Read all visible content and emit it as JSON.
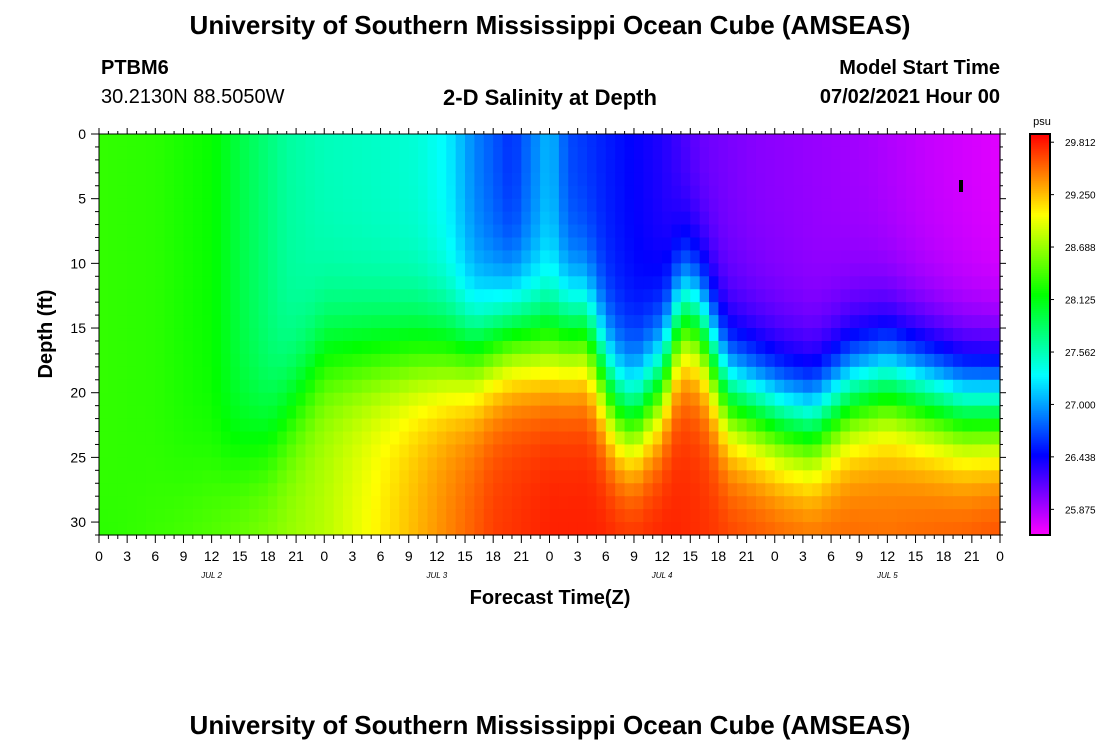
{
  "header": {
    "title_top": "University of Southern Mississippi Ocean Cube (AMSEAS)",
    "title_bottom": "University of Southern Mississippi Ocean Cube (AMSEAS)",
    "station_id": "PTBM6",
    "station_coords": "30.2130N  88.5050W",
    "plot_title": "2-D Salinity at Depth",
    "model_start_label": "Model Start Time",
    "model_start_value": "07/02/2021 Hour 00"
  },
  "chart_data": {
    "type": "heatmap",
    "title": "2-D Salinity at Depth",
    "xlabel": "Forecast Time(Z)",
    "ylabel": "Depth (ft)",
    "x_range_hours": [
      0,
      96
    ],
    "y_range_ft": [
      0,
      31
    ],
    "x_tick_labels": [
      "0",
      "3",
      "6",
      "9",
      "12",
      "15",
      "18",
      "21",
      "0",
      "3",
      "6",
      "9",
      "12",
      "15",
      "18",
      "21",
      "0",
      "3",
      "6",
      "9",
      "12",
      "15",
      "18",
      "21",
      "0",
      "3",
      "6",
      "9",
      "12",
      "15",
      "18",
      "21",
      "0"
    ],
    "y_tick_labels": [
      "0",
      "5",
      "10",
      "15",
      "20",
      "25",
      "30"
    ],
    "y_tick_values": [
      0,
      5,
      10,
      15,
      20,
      25,
      30
    ],
    "day_labels": [
      {
        "text": "JUL 2",
        "hour": 12
      },
      {
        "text": "JUL 3",
        "hour": 36
      },
      {
        "text": "JUL 4",
        "hour": 60
      },
      {
        "text": "JUL 5",
        "hour": 84
      }
    ],
    "colorbar": {
      "units": "psu",
      "min": 25.6,
      "max": 29.9,
      "tick_labels": [
        "29.812",
        "29.250",
        "28.688",
        "28.125",
        "27.562",
        "27.000",
        "26.438",
        "25.875"
      ],
      "tick_values": [
        29.812,
        29.25,
        28.688,
        28.125,
        27.562,
        27.0,
        26.438,
        25.875
      ]
    },
    "surface_profile": [
      {
        "t": 0,
        "v": 28.35
      },
      {
        "t": 6,
        "v": 28.32
      },
      {
        "t": 12,
        "v": 28.2
      },
      {
        "t": 15,
        "v": 27.95
      },
      {
        "t": 20,
        "v": 27.65
      },
      {
        "t": 24,
        "v": 27.55
      },
      {
        "t": 30,
        "v": 27.5
      },
      {
        "t": 34,
        "v": 27.45
      },
      {
        "t": 37,
        "v": 27.3
      },
      {
        "t": 40,
        "v": 26.9
      },
      {
        "t": 44,
        "v": 26.6
      },
      {
        "t": 48,
        "v": 27.1
      },
      {
        "t": 50,
        "v": 26.7
      },
      {
        "t": 54,
        "v": 26.55
      },
      {
        "t": 60,
        "v": 26.35
      },
      {
        "t": 64,
        "v": 26.1
      },
      {
        "t": 70,
        "v": 26.0
      },
      {
        "t": 76,
        "v": 25.95
      },
      {
        "t": 82,
        "v": 25.9
      },
      {
        "t": 88,
        "v": 25.8
      },
      {
        "t": 96,
        "v": 25.7
      }
    ],
    "halocline_depth": [
      {
        "t": 0,
        "d": 31
      },
      {
        "t": 18,
        "d": 24
      },
      {
        "t": 24,
        "d": 17
      },
      {
        "t": 32,
        "d": 17
      },
      {
        "t": 40,
        "d": 17
      },
      {
        "t": 44,
        "d": 15.5
      },
      {
        "t": 48,
        "d": 16
      },
      {
        "t": 52,
        "d": 15.5
      },
      {
        "t": 55,
        "d": 21
      },
      {
        "t": 57,
        "d": 22
      },
      {
        "t": 60,
        "d": 19
      },
      {
        "t": 62,
        "d": 14
      },
      {
        "t": 64,
        "d": 14.5
      },
      {
        "t": 67,
        "d": 20
      },
      {
        "t": 70,
        "d": 21
      },
      {
        "t": 73,
        "d": 22
      },
      {
        "t": 76,
        "d": 22.5
      },
      {
        "t": 80,
        "d": 20
      },
      {
        "t": 84,
        "d": 19
      },
      {
        "t": 88,
        "d": 20
      },
      {
        "t": 92,
        "d": 21
      },
      {
        "t": 96,
        "d": 21
      }
    ],
    "bottom_profile": [
      {
        "t": 0,
        "v": 28.3
      },
      {
        "t": 12,
        "v": 28.5
      },
      {
        "t": 24,
        "v": 28.8
      },
      {
        "t": 30,
        "v": 29.1
      },
      {
        "t": 36,
        "v": 29.4
      },
      {
        "t": 42,
        "v": 29.7
      },
      {
        "t": 48,
        "v": 29.8
      },
      {
        "t": 60,
        "v": 29.8
      },
      {
        "t": 72,
        "v": 29.65
      },
      {
        "t": 84,
        "v": 29.55
      },
      {
        "t": 96,
        "v": 29.7
      }
    ]
  }
}
